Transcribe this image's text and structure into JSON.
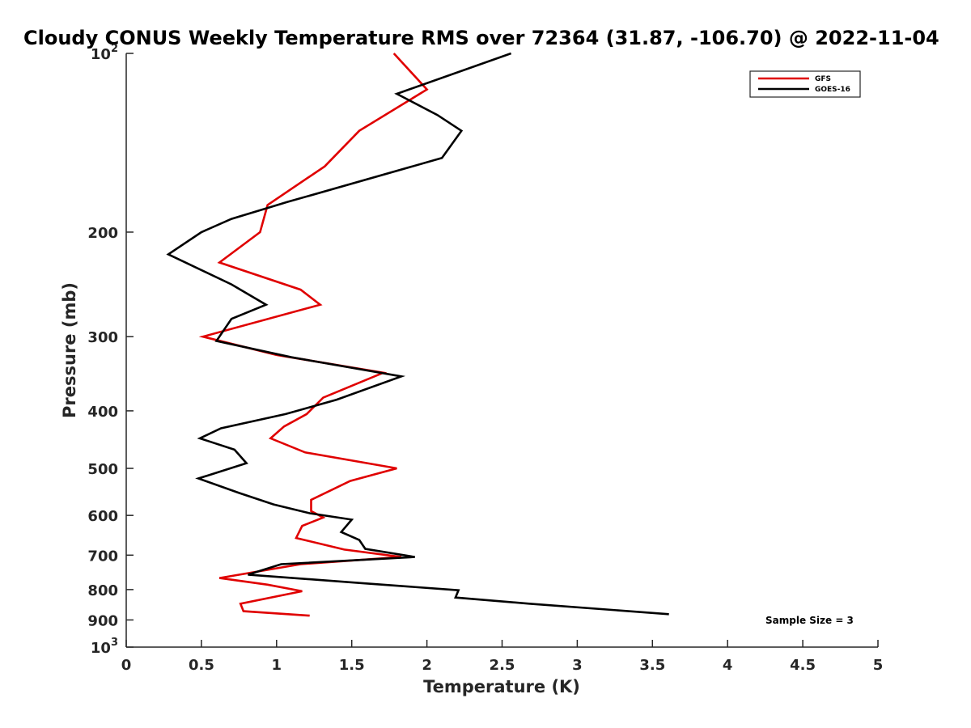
{
  "chart_data": {
    "type": "line",
    "title": "Cloudy CONUS Weekly Temperature RMS over 72364 (31.87, -106.70) @ 2022-11-04",
    "xlabel": "Temperature (K)",
    "ylabel": "Pressure (mb)",
    "xlim": [
      0,
      5
    ],
    "ylim": [
      100,
      1000
    ],
    "y_scale": "log",
    "y_reversed": true,
    "x_ticks": [
      0,
      0.5,
      1,
      1.5,
      2,
      2.5,
      3,
      3.5,
      4,
      4.5,
      5
    ],
    "x_tick_labels": [
      "0",
      "0.5",
      "1",
      "1.5",
      "2",
      "2.5",
      "3",
      "3.5",
      "4",
      "4.5",
      "5"
    ],
    "y_ticks": [
      100,
      200,
      300,
      400,
      500,
      600,
      700,
      800,
      900,
      1000
    ],
    "y_tick_labels": [
      {
        "base": "10",
        "exp": "2"
      },
      {
        "base": "200",
        "exp": ""
      },
      {
        "base": "300",
        "exp": ""
      },
      {
        "base": "400",
        "exp": ""
      },
      {
        "base": "500",
        "exp": ""
      },
      {
        "base": "600",
        "exp": ""
      },
      {
        "base": "700",
        "exp": ""
      },
      {
        "base": "800",
        "exp": ""
      },
      {
        "base": "900",
        "exp": ""
      },
      {
        "base": "10",
        "exp": "3"
      }
    ],
    "grid": false,
    "legend_position": "top-right",
    "annotation": "Sample Size = 3",
    "series": [
      {
        "name": "GFS",
        "color": "#e00000",
        "points": [
          [
            1.78,
            100
          ],
          [
            2.0,
            115
          ],
          [
            1.55,
            135
          ],
          [
            1.32,
            155
          ],
          [
            0.94,
            180
          ],
          [
            0.89,
            200
          ],
          [
            0.62,
            225
          ],
          [
            1.16,
            250
          ],
          [
            1.29,
            265
          ],
          [
            0.51,
            300
          ],
          [
            1.0,
            322
          ],
          [
            1.71,
            345
          ],
          [
            1.31,
            380
          ],
          [
            1.2,
            405
          ],
          [
            1.05,
            425
          ],
          [
            0.96,
            445
          ],
          [
            1.19,
            470
          ],
          [
            1.8,
            500
          ],
          [
            1.49,
            525
          ],
          [
            1.23,
            565
          ],
          [
            1.23,
            590
          ],
          [
            1.31,
            605
          ],
          [
            1.17,
            625
          ],
          [
            1.13,
            655
          ],
          [
            1.45,
            685
          ],
          [
            1.83,
            705
          ],
          [
            1.16,
            725
          ],
          [
            0.62,
            765
          ],
          [
            0.94,
            785
          ],
          [
            1.17,
            805
          ],
          [
            0.76,
            845
          ],
          [
            0.78,
            870
          ],
          [
            1.22,
            885
          ]
        ]
      },
      {
        "name": "GOES-16",
        "color": "#000000",
        "points": [
          [
            2.56,
            100
          ],
          [
            1.8,
            117
          ],
          [
            2.07,
            127
          ],
          [
            2.23,
            135
          ],
          [
            2.1,
            150
          ],
          [
            1.07,
            178
          ],
          [
            0.7,
            190
          ],
          [
            0.5,
            200
          ],
          [
            0.28,
            218
          ],
          [
            0.7,
            245
          ],
          [
            0.93,
            265
          ],
          [
            0.7,
            280
          ],
          [
            0.6,
            305
          ],
          [
            1.1,
            325
          ],
          [
            1.83,
            350
          ],
          [
            1.4,
            383
          ],
          [
            1.06,
            405
          ],
          [
            0.63,
            428
          ],
          [
            0.49,
            445
          ],
          [
            0.72,
            465
          ],
          [
            0.8,
            490
          ],
          [
            0.48,
            520
          ],
          [
            0.75,
            550
          ],
          [
            0.98,
            575
          ],
          [
            1.22,
            595
          ],
          [
            1.5,
            610
          ],
          [
            1.43,
            640
          ],
          [
            1.55,
            660
          ],
          [
            1.59,
            683
          ],
          [
            1.92,
            705
          ],
          [
            1.03,
            725
          ],
          [
            0.81,
            755
          ],
          [
            1.56,
            780
          ],
          [
            2.21,
            802
          ],
          [
            2.19,
            825
          ],
          [
            2.68,
            845
          ],
          [
            3.61,
            880
          ]
        ]
      }
    ]
  }
}
